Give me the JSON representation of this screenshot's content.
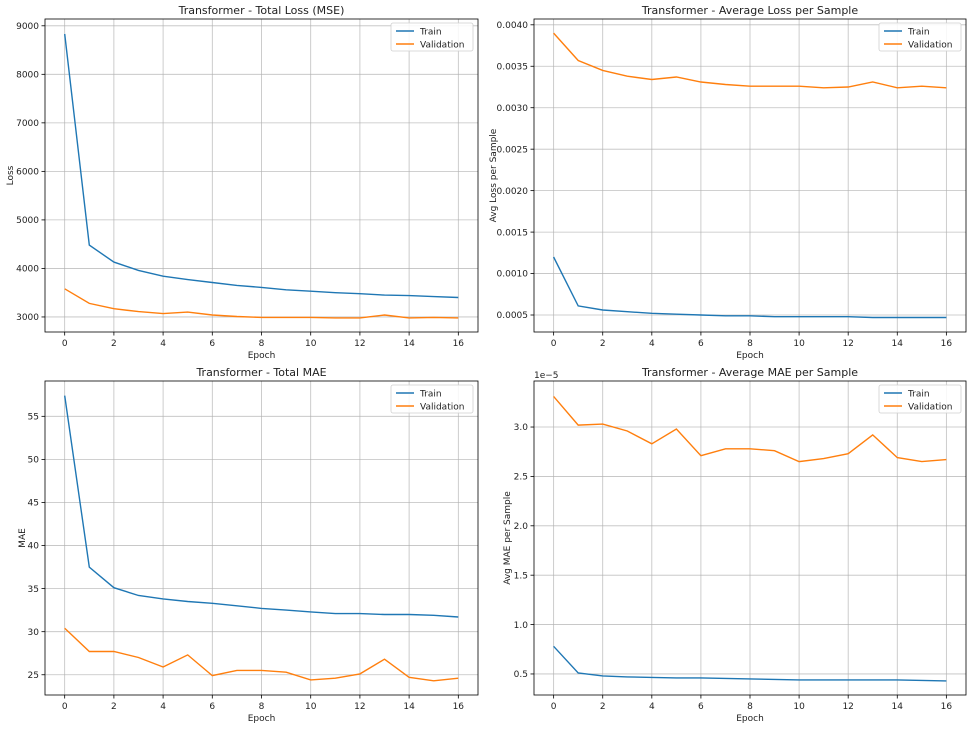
{
  "chart_data": [
    {
      "type": "line",
      "title": "Transformer - Total Loss (MSE)",
      "xlabel": "Epoch",
      "ylabel": "Loss",
      "xlim": [
        -0.8,
        16.8
      ],
      "ylim": [
        2690,
        9140
      ],
      "xticks": [
        "0",
        "2",
        "4",
        "6",
        "8",
        "10",
        "12",
        "14",
        "16"
      ],
      "yticks": [
        "3000",
        "4000",
        "5000",
        "6000",
        "7000",
        "8000",
        "9000"
      ],
      "offset_label": "",
      "grid": true,
      "legend_position": "top-right",
      "x": [
        0,
        1,
        2,
        3,
        4,
        5,
        6,
        7,
        8,
        9,
        10,
        11,
        12,
        13,
        14,
        15,
        16
      ],
      "series": [
        {
          "name": "Train",
          "color": "#1f77b4",
          "values": [
            8830,
            4480,
            4130,
            3960,
            3840,
            3770,
            3710,
            3650,
            3610,
            3560,
            3530,
            3500,
            3480,
            3450,
            3440,
            3420,
            3400
          ]
        },
        {
          "name": "Validation",
          "color": "#ff7f0e",
          "values": [
            3580,
            3280,
            3170,
            3110,
            3070,
            3100,
            3040,
            3010,
            2990,
            2990,
            2990,
            2980,
            2980,
            3040,
            2980,
            2990,
            2980
          ]
        }
      ]
    },
    {
      "type": "line",
      "title": "Transformer - Average Loss per Sample",
      "xlabel": "Epoch",
      "ylabel": "Avg Loss per Sample",
      "xlim": [
        -0.8,
        16.8
      ],
      "ylim": [
        0.000295,
        0.00407
      ],
      "xticks": [
        "0",
        "2",
        "4",
        "6",
        "8",
        "10",
        "12",
        "14",
        "16"
      ],
      "yticks": [
        "0.0005",
        "0.0010",
        "0.0015",
        "0.0020",
        "0.0025",
        "0.0030",
        "0.0035",
        "0.0040"
      ],
      "offset_label": "",
      "grid": true,
      "legend_position": "top-right",
      "x": [
        0,
        1,
        2,
        3,
        4,
        5,
        6,
        7,
        8,
        9,
        10,
        11,
        12,
        13,
        14,
        15,
        16
      ],
      "series": [
        {
          "name": "Train",
          "color": "#1f77b4",
          "values": [
            0.0012,
            0.00061,
            0.00056,
            0.00054,
            0.00052,
            0.00051,
            0.0005,
            0.00049,
            0.00049,
            0.00048,
            0.00048,
            0.00048,
            0.00048,
            0.00047,
            0.00047,
            0.00047,
            0.00047
          ]
        },
        {
          "name": "Validation",
          "color": "#ff7f0e",
          "values": [
            0.0039,
            0.00357,
            0.00345,
            0.00338,
            0.00334,
            0.00337,
            0.00331,
            0.00328,
            0.00326,
            0.00326,
            0.00326,
            0.00324,
            0.00325,
            0.00331,
            0.00324,
            0.00326,
            0.00324
          ]
        }
      ]
    },
    {
      "type": "line",
      "title": "Transformer - Total MAE",
      "xlabel": "Epoch",
      "ylabel": "MAE",
      "xlim": [
        -0.8,
        16.8
      ],
      "ylim": [
        22.65,
        59.1
      ],
      "xticks": [
        "0",
        "2",
        "4",
        "6",
        "8",
        "10",
        "12",
        "14",
        "16"
      ],
      "yticks": [
        "25",
        "30",
        "35",
        "40",
        "45",
        "50",
        "55"
      ],
      "offset_label": "",
      "grid": true,
      "legend_position": "top-right",
      "x": [
        0,
        1,
        2,
        3,
        4,
        5,
        6,
        7,
        8,
        9,
        10,
        11,
        12,
        13,
        14,
        15,
        16
      ],
      "series": [
        {
          "name": "Train",
          "color": "#1f77b4",
          "values": [
            57.4,
            37.5,
            35.1,
            34.2,
            33.8,
            33.5,
            33.3,
            33.0,
            32.7,
            32.5,
            32.3,
            32.1,
            32.1,
            32.0,
            32.0,
            31.9,
            31.7
          ]
        },
        {
          "name": "Validation",
          "color": "#ff7f0e",
          "values": [
            30.4,
            27.7,
            27.7,
            27.0,
            25.9,
            27.3,
            24.9,
            25.5,
            25.5,
            25.3,
            24.4,
            24.6,
            25.1,
            26.8,
            24.7,
            24.3,
            24.6
          ]
        }
      ]
    },
    {
      "type": "line",
      "title": "Transformer - Average MAE per Sample",
      "xlabel": "Epoch",
      "ylabel": "Avg MAE per Sample",
      "xlim": [
        -0.8,
        16.8
      ],
      "ylim": [
        0.287,
        3.466
      ],
      "xticks": [
        "0",
        "2",
        "4",
        "6",
        "8",
        "10",
        "12",
        "14",
        "16"
      ],
      "yticks": [
        "0.5",
        "1.0",
        "1.5",
        "2.0",
        "2.5",
        "3.0"
      ],
      "offset_label": "1e−5",
      "grid": true,
      "legend_position": "top-right",
      "x": [
        0,
        1,
        2,
        3,
        4,
        5,
        6,
        7,
        8,
        9,
        10,
        11,
        12,
        13,
        14,
        15,
        16
      ],
      "series": [
        {
          "name": "Train",
          "color": "#1f77b4",
          "values": [
            0.78,
            0.51,
            0.48,
            0.47,
            0.465,
            0.46,
            0.46,
            0.455,
            0.45,
            0.445,
            0.44,
            0.44,
            0.44,
            0.44,
            0.44,
            0.435,
            0.43
          ]
        },
        {
          "name": "Validation",
          "color": "#ff7f0e",
          "values": [
            3.31,
            3.02,
            3.03,
            2.96,
            2.83,
            2.98,
            2.71,
            2.78,
            2.78,
            2.76,
            2.65,
            2.68,
            2.73,
            2.92,
            2.69,
            2.65,
            2.67
          ]
        }
      ]
    }
  ]
}
